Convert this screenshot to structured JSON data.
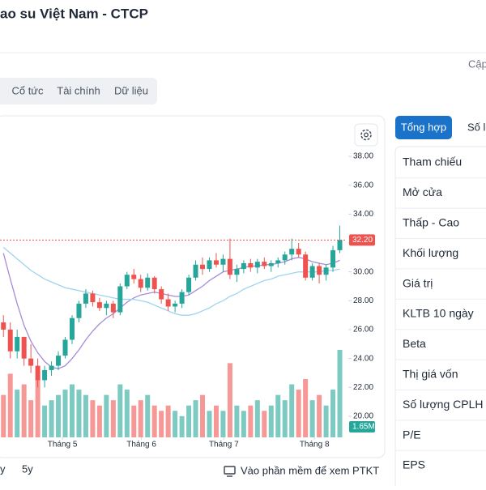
{
  "header": {
    "title": "ao su Việt Nam - CTCP",
    "updated": "Cập"
  },
  "tabs": [
    "Cổ tức",
    "Tài chính",
    "Dữ liệu"
  ],
  "chart_data": {
    "type": "candlestick",
    "open": [
      26.5,
      26,
      24.5,
      25.5,
      24,
      23.5,
      22.5,
      23.2,
      23.5,
      24.2,
      25.3,
      26.8,
      27.8,
      28.5,
      27.9,
      27.5,
      27.8,
      27.2,
      29,
      29.8,
      29.5,
      28.9,
      29.6,
      28.8,
      28.1,
      27.6,
      27.8,
      28.6,
      29.6,
      30.5,
      30.2,
      30.8,
      30.5,
      30.9,
      29.8,
      30.2,
      30.6,
      30.3,
      30.7,
      30.4,
      30.6,
      30.8,
      31.2,
      31.6,
      31.2,
      29.6,
      30.4,
      29.8,
      30.3,
      31.5
    ],
    "high": [
      27,
      26.5,
      26,
      25.5,
      25,
      24,
      23.5,
      23.8,
      24.5,
      25.5,
      27,
      28,
      28.8,
      28.7,
      28.2,
      28,
      28,
      29.2,
      30,
      30.2,
      29.8,
      29.9,
      29.7,
      29,
      28.5,
      28,
      28.8,
      29.8,
      30.8,
      31,
      31,
      31.3,
      31.2,
      32.3,
      30.5,
      30.8,
      30.9,
      30.9,
      31,
      30.8,
      31,
      31.4,
      32.3,
      32,
      31.4,
      30.6,
      30.6,
      30.5,
      31.8,
      33.2
    ],
    "low": [
      25.5,
      24,
      24,
      23.5,
      23,
      22,
      22,
      22.8,
      23.2,
      24,
      25,
      26.5,
      27.5,
      27.6,
      27.3,
      27,
      26.8,
      27,
      28.8,
      29.2,
      28.6,
      28.7,
      28.5,
      27.8,
      27.3,
      27.2,
      27.5,
      28.4,
      29.4,
      29.8,
      30,
      30.3,
      30,
      29.5,
      29.3,
      29.9,
      30,
      29.9,
      30.2,
      30,
      30.3,
      30.5,
      30.8,
      31,
      29.4,
      29.4,
      29.2,
      29.4,
      30,
      31.3
    ],
    "close": [
      26,
      24.5,
      25.5,
      24,
      23.5,
      22.5,
      23.2,
      23.5,
      24.2,
      25.3,
      26.8,
      27.8,
      28.5,
      27.9,
      27.5,
      27.8,
      27.2,
      29,
      29.8,
      29.5,
      28.9,
      29.6,
      28.8,
      28.1,
      27.6,
      27.8,
      28.6,
      29.6,
      30.5,
      30.2,
      30.8,
      30.5,
      30.9,
      29.8,
      30.2,
      30.6,
      30.3,
      30.7,
      30.4,
      30.6,
      30.8,
      31.2,
      31.6,
      31.2,
      29.6,
      30.4,
      29.8,
      30.3,
      31.5,
      32.2
    ],
    "volume": [
      0.8,
      1.2,
      0.9,
      1.0,
      0.7,
      1.1,
      0.6,
      0.7,
      0.8,
      0.9,
      1.0,
      0.9,
      0.8,
      0.7,
      0.6,
      0.8,
      0.7,
      1.0,
      0.9,
      0.6,
      0.7,
      0.8,
      0.6,
      0.5,
      0.6,
      0.5,
      0.4,
      0.6,
      0.7,
      0.8,
      0.5,
      0.6,
      0.5,
      1.4,
      0.6,
      0.5,
      0.6,
      0.7,
      0.5,
      0.6,
      0.8,
      0.7,
      1.0,
      0.9,
      1.1,
      0.7,
      0.8,
      0.6,
      0.9,
      1.65
    ],
    "series": [
      {
        "color": "#a78bd8",
        "values": [
          31.3,
          29.5,
          27.8,
          26.3,
          25.2,
          24.4,
          23.8,
          23.4,
          23.3,
          23.5,
          24,
          24.6,
          25.3,
          25.9,
          26.4,
          26.8,
          27.1,
          27.5,
          27.9,
          28.2,
          28.4,
          28.5,
          28.6,
          28.5,
          28.4,
          28.3,
          28.3,
          28.4,
          28.7,
          29,
          29.4,
          29.7,
          30,
          30.1,
          30.2,
          30.3,
          30.4,
          30.4,
          30.5,
          30.5,
          30.6,
          30.7,
          30.9,
          31,
          30.9,
          30.7,
          30.6,
          30.5,
          30.6,
          30.8
        ]
      },
      {
        "color": "#9fd3f0",
        "values": [
          31.7,
          31.3,
          30.9,
          30.5,
          30.1,
          29.8,
          29.5,
          29.3,
          29.1,
          28.9,
          28.8,
          28.7,
          28.6,
          28.5,
          28.4,
          28.3,
          28.2,
          28.1,
          28.1,
          28.1,
          28.0,
          27.9,
          27.7,
          27.5,
          27.3,
          27.1,
          27.0,
          27.0,
          27.1,
          27.3,
          27.5,
          27.8,
          28.0,
          28.3,
          28.5,
          28.8,
          29.0,
          29.2,
          29.4,
          29.5,
          29.7,
          29.8,
          29.9,
          30.0,
          30.0,
          30.0,
          30.0,
          30.1,
          30.1,
          30.2
        ]
      }
    ],
    "up_color": "#26a69a",
    "down_color": "#ef5350",
    "ylim": [
      19.3,
      39
    ],
    "yticks": [
      {
        "value": 38,
        "label": "38.00"
      },
      {
        "value": 36,
        "label": "36.00"
      },
      {
        "value": 34,
        "label": "34.00"
      },
      {
        "value": 32,
        "label": "32.00"
      },
      {
        "value": 30,
        "label": "30.00"
      },
      {
        "value": 28,
        "label": "28.00"
      },
      {
        "value": 26,
        "label": "26.00"
      },
      {
        "value": 24,
        "label": "24.00"
      },
      {
        "value": 22,
        "label": "22.00"
      },
      {
        "value": 20,
        "label": "20.00"
      }
    ],
    "xlim": [
      -0.5,
      50
    ],
    "xticks": [
      {
        "value": 8.6,
        "label": "Tháng 5"
      },
      {
        "value": 20.1,
        "label": "Tháng 6"
      },
      {
        "value": 32.1,
        "label": "Tháng 7"
      },
      {
        "value": 45.3,
        "label": "Tháng 8"
      }
    ],
    "vlim": [
      0,
      1.65
    ],
    "last_price": {
      "value": 32.2,
      "label": "32.20"
    },
    "last_volume": {
      "value": 1.65,
      "label": "1.65M"
    }
  },
  "ranges": [
    "y",
    "5y"
  ],
  "ptkt_link": "Vào phần mềm để xem PTKT",
  "side": {
    "tabs": [
      "Tổng hợp",
      "Số lệ"
    ],
    "rows": [
      "Tham chiếu",
      "Mở cửa",
      "Thấp - Cao",
      "Khối lượng",
      "Giá trị",
      "KLTB 10 ngày",
      "Beta",
      "Thị giá vốn",
      "Số lượng CPLH",
      "P/E",
      "EPS"
    ]
  }
}
